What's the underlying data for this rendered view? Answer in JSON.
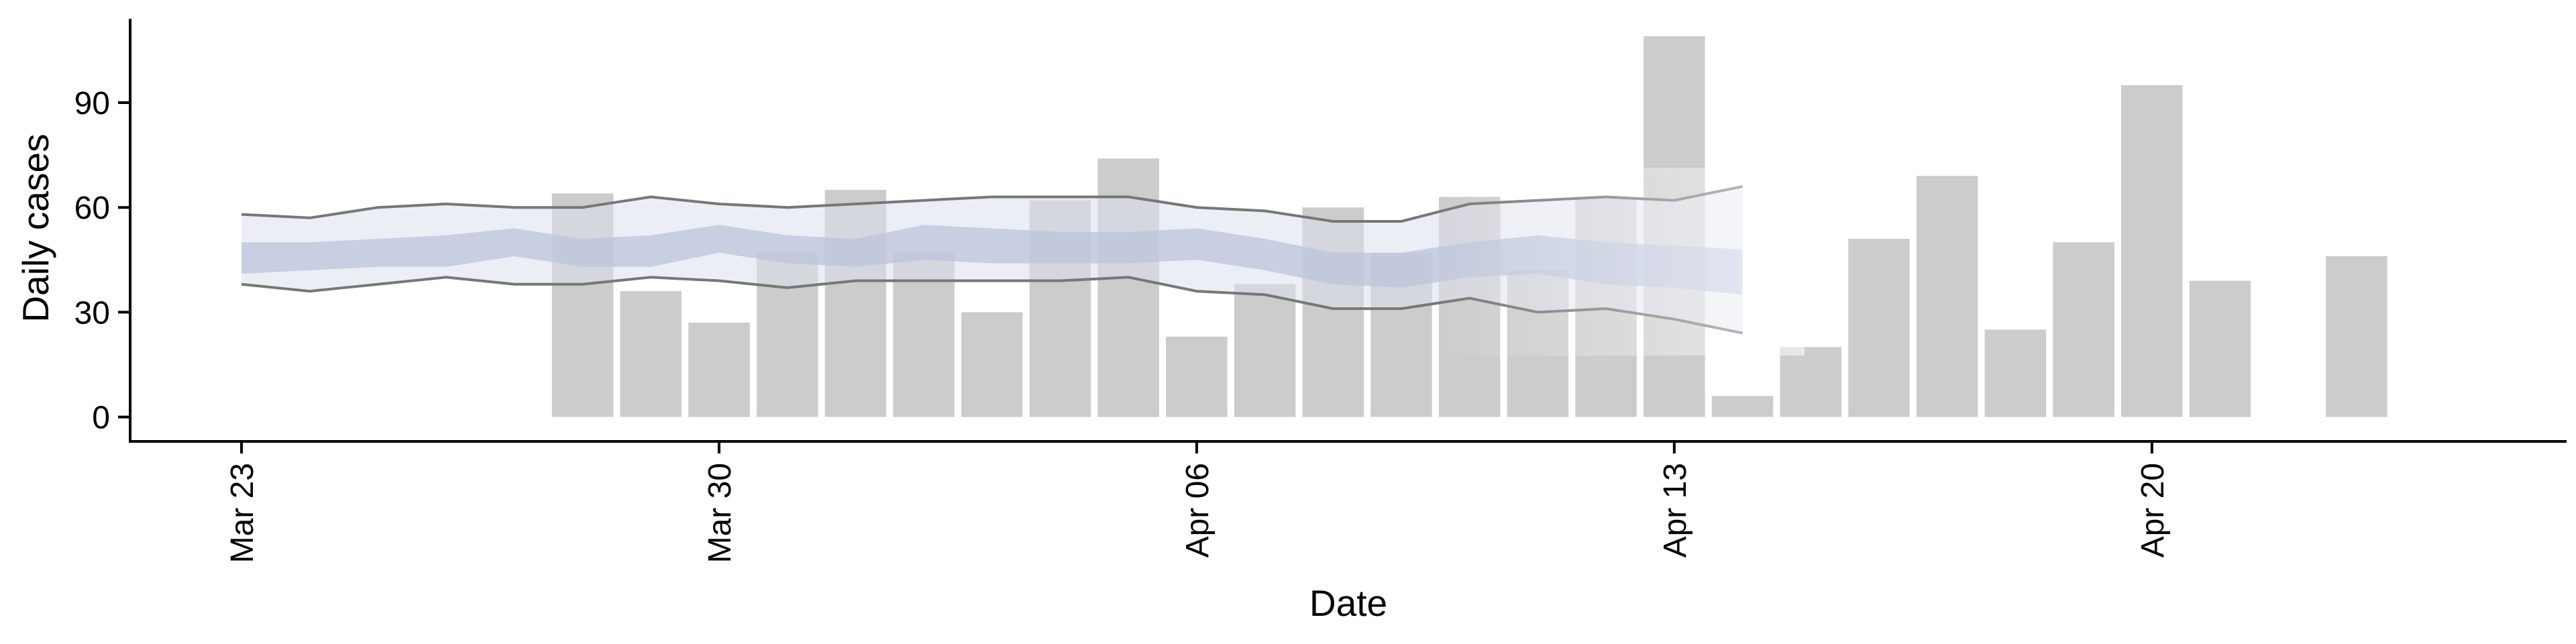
{
  "chart_data": {
    "type": "bar",
    "xlabel": "Date",
    "ylabel": "Daily cases",
    "x_range": [
      "2020-03-23",
      "2020-04-26"
    ],
    "ylim": [
      -7,
      114
    ],
    "x_ticks": [
      {
        "date": "2020-03-23",
        "label": "Mar 23"
      },
      {
        "date": "2020-03-30",
        "label": "Mar 30"
      },
      {
        "date": "2020-04-06",
        "label": "Apr 06"
      },
      {
        "date": "2020-04-13",
        "label": "Apr 13"
      },
      {
        "date": "2020-04-20",
        "label": "Apr 20"
      }
    ],
    "y_ticks": [
      0,
      30,
      60,
      90
    ],
    "grid": false,
    "bars": {
      "color": "#cccccc",
      "points": [
        {
          "date": "2020-03-28",
          "value": 64
        },
        {
          "date": "2020-03-29",
          "value": 36
        },
        {
          "date": "2020-03-30",
          "value": 27
        },
        {
          "date": "2020-03-31",
          "value": 47
        },
        {
          "date": "2020-04-01",
          "value": 65
        },
        {
          "date": "2020-04-02",
          "value": 47
        },
        {
          "date": "2020-04-03",
          "value": 30
        },
        {
          "date": "2020-04-04",
          "value": 62
        },
        {
          "date": "2020-04-05",
          "value": 74
        },
        {
          "date": "2020-04-06",
          "value": 23
        },
        {
          "date": "2020-04-07",
          "value": 38
        },
        {
          "date": "2020-04-08",
          "value": 60
        },
        {
          "date": "2020-04-09",
          "value": 47
        },
        {
          "date": "2020-04-10",
          "value": 63
        },
        {
          "date": "2020-04-11",
          "value": 42
        },
        {
          "date": "2020-04-12",
          "value": 63
        },
        {
          "date": "2020-04-13",
          "value": 109
        },
        {
          "date": "2020-04-14",
          "value": 6
        },
        {
          "date": "2020-04-15",
          "value": 20
        },
        {
          "date": "2020-04-16",
          "value": 51
        },
        {
          "date": "2020-04-17",
          "value": 69
        },
        {
          "date": "2020-04-18",
          "value": 25
        },
        {
          "date": "2020-04-19",
          "value": 50
        },
        {
          "date": "2020-04-20",
          "value": 95
        },
        {
          "date": "2020-04-21",
          "value": 39
        },
        {
          "date": "2020-04-23",
          "value": 46
        }
      ]
    },
    "estimate": {
      "line_color": "#777777",
      "outer_band_color": "#dde0ec",
      "inner_band_color": "#bcc4dc",
      "dates": [
        "2020-03-23",
        "2020-03-24",
        "2020-03-25",
        "2020-03-26",
        "2020-03-27",
        "2020-03-28",
        "2020-03-29",
        "2020-03-30",
        "2020-03-31",
        "2020-04-01",
        "2020-04-02",
        "2020-04-03",
        "2020-04-04",
        "2020-04-05",
        "2020-04-06",
        "2020-04-07",
        "2020-04-08",
        "2020-04-09",
        "2020-04-10",
        "2020-04-11",
        "2020-04-12",
        "2020-04-13",
        "2020-04-14"
      ],
      "upper": [
        58,
        57,
        60,
        61,
        60,
        60,
        63,
        61,
        60,
        61,
        62,
        63,
        63,
        63,
        60,
        59,
        56,
        56,
        61,
        62,
        63,
        62,
        66
      ],
      "lower": [
        38,
        36,
        38,
        40,
        38,
        38,
        40,
        39,
        37,
        39,
        39,
        39,
        39,
        40,
        36,
        35,
        31,
        31,
        34,
        30,
        31,
        28,
        24
      ],
      "inner_upper": [
        50,
        50,
        51,
        52,
        54,
        51,
        52,
        55,
        52,
        51,
        55,
        54,
        53,
        53,
        54,
        51,
        47,
        47,
        50,
        52,
        50,
        49,
        48
      ],
      "inner_lower": [
        41,
        42,
        43,
        43,
        46,
        43,
        43,
        47,
        44,
        43,
        45,
        44,
        44,
        44,
        45,
        42,
        38,
        37,
        40,
        41,
        38,
        37,
        35
      ]
    }
  }
}
